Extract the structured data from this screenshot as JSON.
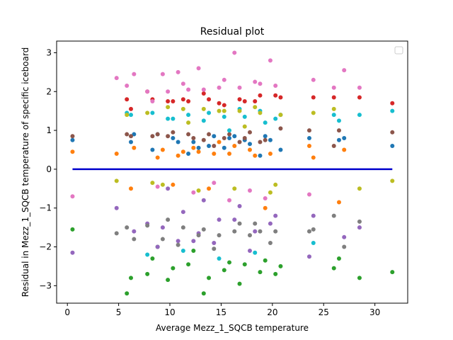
{
  "chart_data": {
    "type": "scatter",
    "title": "Residual plot",
    "xlabel": "Average Mezz_1_SQCB temperature",
    "ylabel": "Residual in Mezz_1_SQCB temperature of specific iceboard",
    "xlim": [
      -1.05,
      33.2
    ],
    "ylim": [
      -3.45,
      3.3
    ],
    "xticks": [
      0,
      5,
      10,
      15,
      20,
      25,
      30
    ],
    "yticks": [
      -3,
      -2,
      -1,
      0,
      1,
      2,
      3
    ],
    "grid": false,
    "legend": "upper-right (empty)",
    "zero_line": {
      "y": 0,
      "x_range": [
        0.5,
        31.7
      ],
      "color": "#0000cc"
    },
    "palette": [
      "#1f77b4",
      "#ff7f0e",
      "#2ca02c",
      "#d62728",
      "#9467bd",
      "#8c564b",
      "#e377c2",
      "#7f7f7f",
      "#bcbd22",
      "#17becf"
    ],
    "x_columns": [
      0.5,
      4.8,
      5.8,
      6.2,
      6.5,
      7.8,
      8.3,
      8.8,
      9.3,
      9.8,
      10.3,
      10.8,
      11.3,
      11.8,
      12.3,
      12.8,
      13.3,
      13.8,
      14.3,
      14.8,
      15.3,
      15.8,
      16.3,
      16.8,
      17.3,
      17.8,
      18.3,
      18.8,
      19.3,
      19.8,
      20.3,
      20.8,
      23.6,
      24.0,
      26.0,
      26.5,
      27.0,
      28.5,
      31.7
    ],
    "series": [
      {
        "name": "",
        "color": "#2ca02c",
        "y": [
          -1.55,
          -2.0,
          -2.1,
          -2.4,
          -2.35,
          -2.3,
          -2.8,
          -2.55,
          -2.8,
          -2.45,
          -2.5,
          -2.65,
          -2.3,
          -2.45,
          -2.6,
          -2.65,
          -2.55,
          -3.2,
          -2.85,
          -3.2,
          -2.95,
          -2.7,
          -2.8,
          -2.7
        ]
      },
      {
        "name": "",
        "color": "#d62728",
        "y": [
          1.55,
          1.75,
          1.8,
          1.75,
          1.85,
          1.7,
          1.8,
          1.75,
          1.65,
          1.9,
          1.85,
          1.8,
          1.75,
          1.95,
          1.8,
          1.9,
          1.85,
          2.0,
          1.8,
          1.7,
          1.75,
          1.85
        ]
      },
      {
        "name": "",
        "color": "#e377c2",
        "y": [
          1.75,
          2.05,
          2.3,
          2.2,
          2.1,
          2.15,
          2.0,
          2.05,
          2.1,
          2.15,
          2.1,
          2.0,
          2.2,
          2.1,
          2.25,
          2.3,
          2.35,
          2.45,
          2.6,
          3.0,
          2.8,
          2.55,
          2.45,
          2.5,
          -0.35,
          -0.55,
          -0.65,
          -0.7,
          -0.45,
          -0.6,
          -0.8,
          -0.75
        ]
      },
      {
        "name": "",
        "color": "#9467bd",
        "y": [
          -0.5,
          -0.8,
          -0.95,
          -1.2,
          -1.5,
          -1.4,
          -1.1,
          -1.3,
          -1.6,
          -1.2,
          -1.0,
          -1.5,
          -1.65,
          -1.3,
          -1.4,
          -1.75,
          -1.6,
          -1.85,
          -1.9,
          -2.1,
          -2.25,
          -2.15,
          -2.0,
          -1.85
        ]
      },
      {
        "name": "",
        "color": "#ff7f0e",
        "y": [
          0.45,
          0.7,
          0.35,
          0.3,
          0.4,
          0.5,
          0.45,
          0.6,
          0.4,
          0.5,
          0.55,
          0.35,
          0.4,
          0.5,
          0.6,
          0.45,
          0.3,
          0.55,
          0.4,
          -1.0,
          -0.85,
          -0.5,
          -0.4,
          -0.5
        ]
      },
      {
        "name": "",
        "color": "#1f77b4",
        "y": [
          0.55,
          0.85,
          0.75,
          0.8,
          0.9,
          0.7,
          0.85,
          0.65,
          0.8,
          0.75,
          0.9,
          0.7,
          0.8,
          0.85,
          0.75,
          0.7,
          0.8,
          0.6,
          0.75,
          0.5,
          0.6,
          0.5,
          0.4,
          0.55,
          0.35
        ]
      },
      {
        "name": "",
        "color": "#8c564b",
        "y": [
          0.6,
          0.95,
          1.0,
          0.85,
          0.9,
          0.8,
          0.9,
          0.75,
          1.0,
          0.85,
          0.95,
          0.9,
          0.8,
          1.05,
          0.95,
          0.85,
          0.9,
          0.8,
          0.7,
          0.6,
          0.9,
          0.85,
          0.75,
          0.7
        ]
      },
      {
        "name": "",
        "color": "#17becf",
        "y": [
          1.0,
          1.2,
          1.25,
          1.4,
          1.3,
          1.45,
          1.35,
          1.4,
          1.5,
          1.45,
          1.4,
          1.35,
          1.5,
          1.4,
          1.45,
          1.3,
          1.25,
          1.55,
          1.3,
          1.4,
          -2.2,
          -2.1,
          -2.3,
          -2.15,
          -1.9
        ]
      },
      {
        "name": "",
        "color": "#bcbd22",
        "y": [
          1.1,
          1.4,
          -0.3,
          -0.35,
          1.2,
          1.5,
          1.45,
          1.55,
          1.4,
          1.6,
          1.55,
          1.5,
          -0.4,
          -0.5,
          1.45,
          1.55,
          1.5,
          1.6,
          1.45,
          -0.3,
          -0.4,
          -0.55,
          -0.5,
          -0.6
        ]
      },
      {
        "name": "",
        "color": "#7f7f7f",
        "y": [
          -1.6,
          -1.2,
          -1.5,
          -1.3,
          -1.55,
          -1.4,
          -1.6,
          -1.35,
          -1.45,
          -1.5,
          -1.7,
          -1.4,
          -1.55,
          -1.65,
          -1.8,
          -1.7,
          -1.6,
          -1.9,
          -2.0,
          -1.8,
          -1.95,
          -2.05,
          -1.7,
          -1.6
        ]
      }
    ]
  }
}
